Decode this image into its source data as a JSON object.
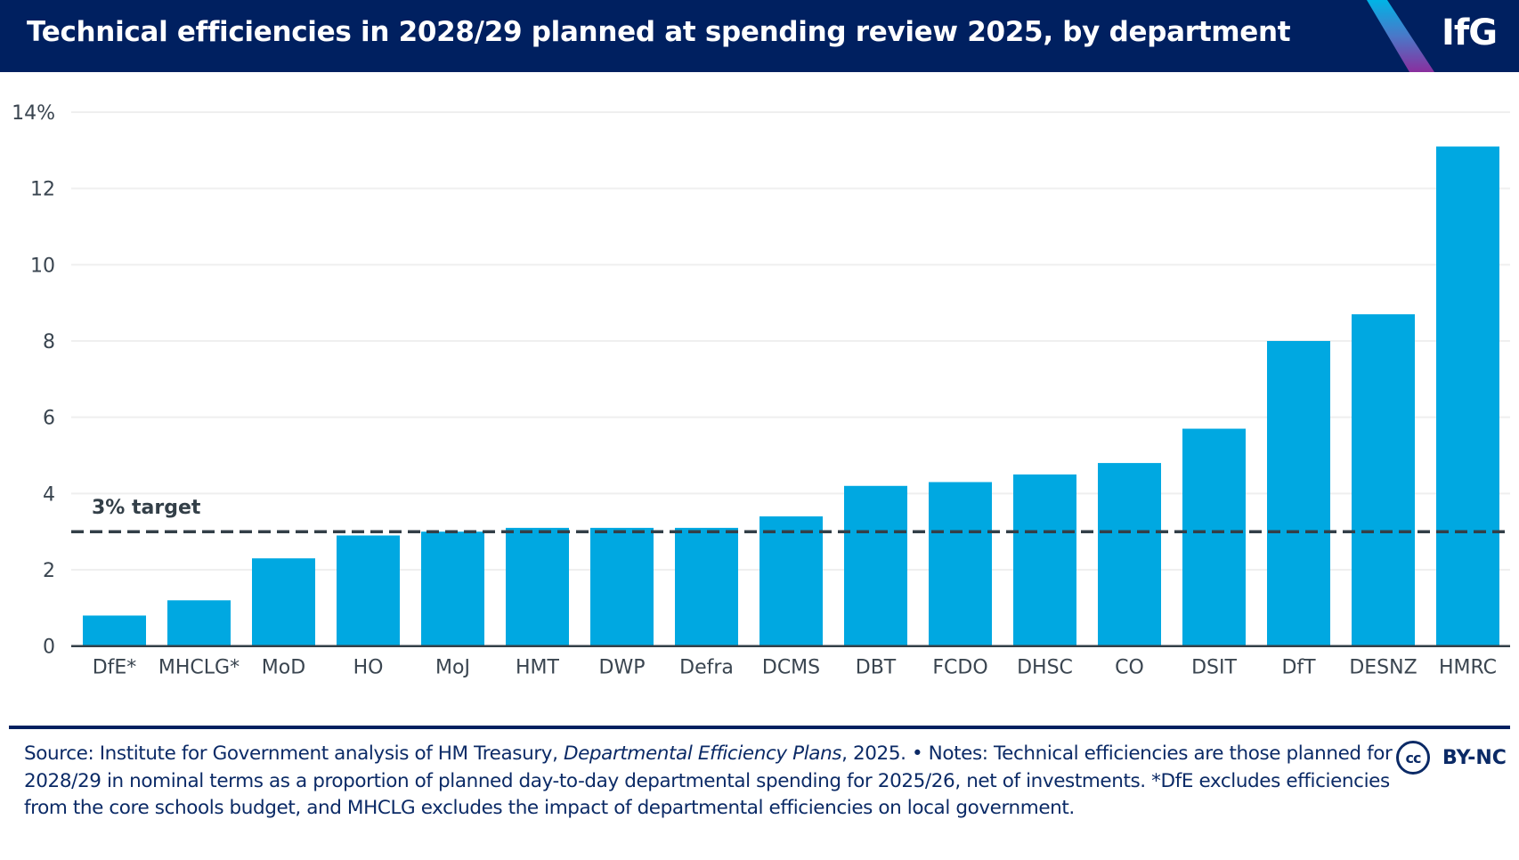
{
  "header": {
    "title": "Technical efficiencies in 2028/29 planned at spending review 2025, by department",
    "logo": "IfG"
  },
  "colors": {
    "header_bg": "#002060",
    "bar": "#00a8e1",
    "target_line": "#333f48",
    "gridline": "#efefef",
    "footer_text": "#0b2a66"
  },
  "chart_data": {
    "type": "bar",
    "title": "Technical efficiencies in 2028/29 planned at spending review 2025, by department",
    "xlabel": "",
    "ylabel": "",
    "categories": [
      "DfE*",
      "MHCLG*",
      "MoD",
      "HO",
      "MoJ",
      "HMT",
      "DWP",
      "Defra",
      "DCMS",
      "DBT",
      "FCDO",
      "DHSC",
      "CO",
      "DSIT",
      "DfT",
      "DESNZ",
      "HMRC"
    ],
    "values": [
      0.8,
      1.2,
      2.3,
      2.9,
      3.0,
      3.1,
      3.1,
      3.1,
      3.4,
      4.2,
      4.3,
      4.5,
      4.8,
      5.7,
      8.0,
      8.7,
      13.1
    ],
    "ylim": [
      0,
      14
    ],
    "yticks": [
      0,
      2,
      4,
      6,
      8,
      10,
      12,
      14
    ],
    "ytick_labels": [
      "0",
      "2",
      "4",
      "6",
      "8",
      "10",
      "12",
      "14%"
    ],
    "grid": true,
    "reference_line": {
      "value": 3,
      "label": "3% target",
      "style": "dashed"
    },
    "legend": "none"
  },
  "footer": {
    "source_prefix": "Source: Institute for Government analysis of HM Treasury, ",
    "source_italic": "Departmental Efficiency Plans",
    "source_suffix": ", 2025. • Notes: Technical efficiencies are those planned for 2028/29 in nominal terms as a proportion of planned day-to-day departmental spending for 2025/26, net of investments. *DfE excludes efficiencies from the core schools budget, and MHCLG excludes the impact of departmental efficiencies on local government.",
    "license_icon": "cc-icon",
    "license_icon_text": "cc",
    "license_text": "BY-NC"
  }
}
